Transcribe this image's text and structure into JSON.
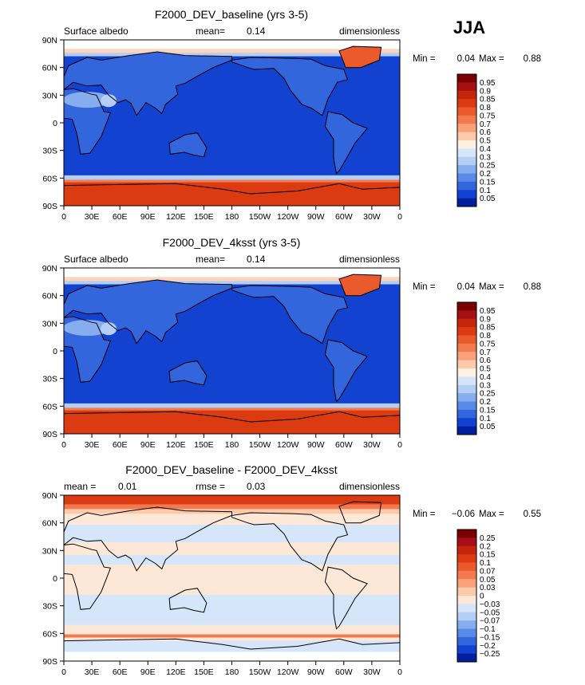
{
  "season_label": "JJA",
  "chart_data": [
    {
      "type": "heatmap",
      "title": "F2000_DEV_baseline (yrs 3-5)",
      "left_label": "Surface albedo",
      "center_label": "mean=",
      "center_value": "0.14",
      "right_label": "dimensionless",
      "stats": {
        "min_label": "Min =",
        "min": "0.04",
        "max_label": "Max =",
        "max": "0.88"
      },
      "x_ticks": [
        "0",
        "30E",
        "60E",
        "90E",
        "120E",
        "150E",
        "180",
        "150W",
        "120W",
        "90W",
        "60W",
        "30W",
        "0"
      ],
      "y_ticks": [
        "90N",
        "60N",
        "30N",
        "0",
        "30S",
        "60S",
        "90S"
      ],
      "colorbar": {
        "labels": [
          "0.95",
          "0.9",
          "0.85",
          "0.8",
          "0.75",
          "0.7",
          "0.6",
          "0.5",
          "0.4",
          "0.3",
          "0.25",
          "0.2",
          "0.15",
          "0.1",
          "0.05"
        ],
        "colors": [
          "#7a0000",
          "#a50f15",
          "#c4260c",
          "#dc3a10",
          "#ea5a2c",
          "#f27a4e",
          "#f9a27a",
          "#fcc9aa",
          "#fff0e0",
          "#d6e6fa",
          "#b5cff4",
          "#86aeee",
          "#5a8ae8",
          "#3365dc",
          "#1242cf",
          "#0020a0"
        ]
      }
    },
    {
      "type": "heatmap",
      "title": "F2000_DEV_4ksst (yrs 3-5)",
      "left_label": "Surface albedo",
      "center_label": "mean=",
      "center_value": "0.14",
      "right_label": "dimensionless",
      "stats": {
        "min_label": "Min =",
        "min": "0.04",
        "max_label": "Max =",
        "max": "0.88"
      },
      "x_ticks": [
        "0",
        "30E",
        "60E",
        "90E",
        "120E",
        "150E",
        "180",
        "150W",
        "120W",
        "90W",
        "60W",
        "30W",
        "0"
      ],
      "y_ticks": [
        "90N",
        "60N",
        "30N",
        "0",
        "30S",
        "60S",
        "90S"
      ],
      "colorbar": {
        "labels": [
          "0.95",
          "0.9",
          "0.85",
          "0.8",
          "0.75",
          "0.7",
          "0.6",
          "0.5",
          "0.4",
          "0.3",
          "0.25",
          "0.2",
          "0.15",
          "0.1",
          "0.05"
        ],
        "colors": [
          "#7a0000",
          "#a50f15",
          "#c4260c",
          "#dc3a10",
          "#ea5a2c",
          "#f27a4e",
          "#f9a27a",
          "#fcc9aa",
          "#fff0e0",
          "#d6e6fa",
          "#b5cff4",
          "#86aeee",
          "#5a8ae8",
          "#3365dc",
          "#1242cf",
          "#0020a0"
        ]
      }
    },
    {
      "type": "heatmap",
      "title": "F2000_DEV_baseline - F2000_DEV_4ksst",
      "left_label": "mean =",
      "left_value": "0.01",
      "center_label": "rmse =",
      "center_value": "0.03",
      "right_label": "dimensionless",
      "stats": {
        "min_label": "Min =",
        "min": "−0.06",
        "max_label": "Max =",
        "max": "0.55"
      },
      "x_ticks": [
        "0",
        "30E",
        "60E",
        "90E",
        "120E",
        "150E",
        "180",
        "150W",
        "120W",
        "90W",
        "60W",
        "30W",
        "0"
      ],
      "y_ticks": [
        "90N",
        "60N",
        "30N",
        "0",
        "30S",
        "60S",
        "90S"
      ],
      "colorbar": {
        "labels": [
          "0.25",
          "0.2",
          "0.15",
          "0.1",
          "0.07",
          "0.05",
          "0.03",
          "0",
          "−0.03",
          "−0.05",
          "−0.07",
          "−0.1",
          "−0.15",
          "−0.2",
          "−0.25"
        ],
        "colors": [
          "#7a0000",
          "#a50f15",
          "#c4260c",
          "#dc3a10",
          "#ea5a2c",
          "#f27a4e",
          "#f9a27a",
          "#fcc9aa",
          "#fde8d8",
          "#d6e6fa",
          "#b5cff4",
          "#86aeee",
          "#5a8ae8",
          "#3365dc",
          "#1242cf",
          "#0020a0"
        ]
      }
    }
  ]
}
